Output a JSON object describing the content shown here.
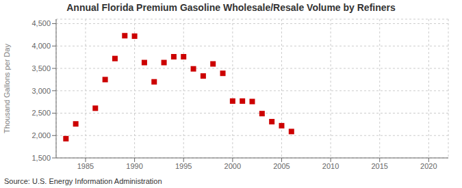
{
  "chart_data": {
    "type": "scatter",
    "title": "Annual Florida Premium Gasoline Wholesale/Resale Volume by Refiners",
    "y_label": "Thousand Gallons per Day",
    "annotation": "Source: U.S. Energy Information Administration",
    "x": [
      1983,
      1984,
      1986,
      1987,
      1988,
      1989,
      1990,
      1991,
      1992,
      1993,
      1994,
      1995,
      1996,
      1997,
      1998,
      1999,
      2000,
      2001,
      2002,
      2003,
      2004,
      2005,
      2006
    ],
    "values": [
      1930,
      2260,
      2610,
      3250,
      3720,
      4230,
      4220,
      3630,
      3200,
      3630,
      3760,
      3760,
      3490,
      3330,
      3600,
      3390,
      2770,
      2770,
      2760,
      2490,
      2310,
      2220,
      2090
    ],
    "color": "#cc0000",
    "marker": "square",
    "xlim": [
      1982,
      2022
    ],
    "ylim": [
      1500,
      4600
    ],
    "xticks": [
      1985,
      1990,
      1995,
      2000,
      2005,
      2010,
      2015,
      2020
    ],
    "yticks": [
      {
        "value": 1500,
        "label": "1,500"
      },
      {
        "value": 2000,
        "label": "2,000"
      },
      {
        "value": 2500,
        "label": "2,500"
      },
      {
        "value": 3000,
        "label": "3,000"
      },
      {
        "value": 3500,
        "label": "3,500"
      },
      {
        "value": 4000,
        "label": "4,000"
      },
      {
        "value": 4500,
        "label": "4,500"
      }
    ],
    "grid": true
  }
}
